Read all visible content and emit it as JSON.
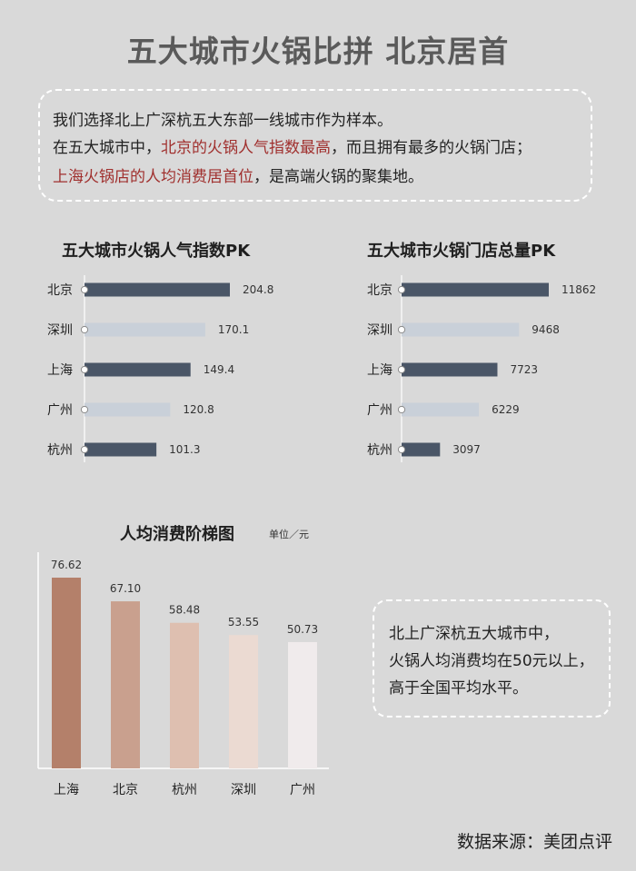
{
  "title": "五大城市火锅比拼  北京居首",
  "intro": {
    "line1": "我们选择北上广深杭五大东部一线城市作为样本。",
    "line2_a": "在五大城市中，",
    "line2_b": "北京的火锅人气指数最高",
    "line2_c": "，而且拥有最多的火锅门店；",
    "line3_a": "上海火锅店的人均消费居首位",
    "line3_b": "，是高端火锅的聚集地。"
  },
  "note": {
    "line1": "北上广深杭五大城市中，",
    "line2": "火锅人均消费均在50元以上，",
    "line3": "高于全国平均水平。"
  },
  "source": "数据来源：美团点评",
  "colors": {
    "dark_bar": "#4a5667",
    "light_bar": "#c9d0d9"
  },
  "chart_data": [
    {
      "type": "bar",
      "orientation": "horizontal",
      "title": "五大城市火锅人气指数PK",
      "categories": [
        "北京",
        "深圳",
        "上海",
        "广州",
        "杭州"
      ],
      "values": [
        204.8,
        170.1,
        149.4,
        120.8,
        101.3
      ],
      "value_labels": [
        "204.8",
        "170.1",
        "149.4",
        "120.8",
        "101.3"
      ],
      "xlim": [
        0,
        204.8
      ]
    },
    {
      "type": "bar",
      "orientation": "horizontal",
      "title": "五大城市火锅门店总量PK",
      "categories": [
        "北京",
        "深圳",
        "上海",
        "广州",
        "杭州"
      ],
      "values": [
        11862,
        9468,
        7723,
        6229,
        3097
      ],
      "value_labels": [
        "11862",
        "9468",
        "7723",
        "6229",
        "3097"
      ],
      "xlim": [
        0,
        11862
      ]
    },
    {
      "type": "bar",
      "orientation": "vertical",
      "title": "人均消费阶梯图",
      "unit": "单位／元",
      "categories": [
        "上海",
        "北京",
        "杭州",
        "深圳",
        "广州"
      ],
      "values": [
        76.62,
        67.1,
        58.48,
        53.55,
        50.73
      ],
      "value_labels": [
        "76.62",
        "67.10",
        "58.48",
        "53.55",
        "50.73"
      ],
      "colors": [
        "#b4806a",
        "#c9a08e",
        "#debfb0",
        "#ebdad2",
        "#f0ebec"
      ],
      "ylim": [
        0,
        76.62
      ]
    }
  ]
}
